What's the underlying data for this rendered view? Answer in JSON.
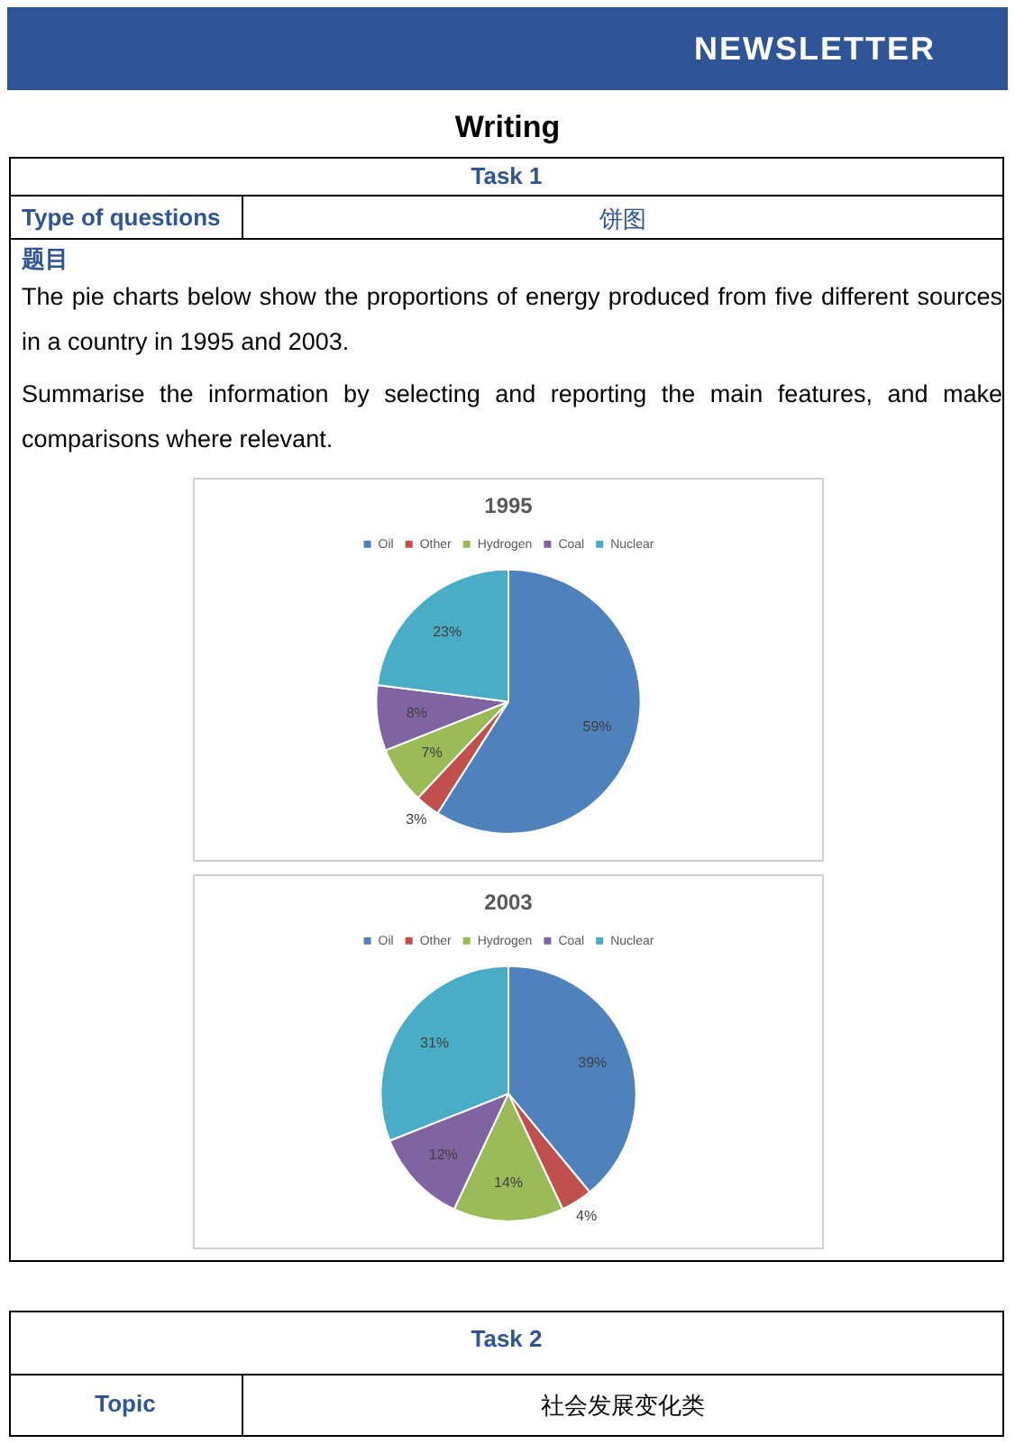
{
  "chart_data": [
    {
      "type": "pie",
      "title": "1995",
      "categories": [
        "Oil",
        "Other",
        "Hydrogen",
        "Coal",
        "Nuclear"
      ],
      "values": [
        59,
        3,
        7,
        8,
        23
      ],
      "value_labels": [
        "59%",
        "3%",
        "7%",
        "8%",
        "23%"
      ],
      "colors": [
        "#4f81bd",
        "#c0504d",
        "#9bbb59",
        "#8064a2",
        "#4bacc6"
      ],
      "legend": "top",
      "annotations": [
        "NEWSLETTER",
        "Writing",
        "Task 1",
        "Type of questions",
        "饼图",
        "题目",
        "The pie charts below show the proportions of energy produced from five different sources in a country in 1995 and 2003.",
        "Summarise the information by selecting and reporting the main features, and make comparisons where relevant."
      ]
    },
    {
      "type": "pie",
      "title": "2003",
      "categories": [
        "Oil",
        "Other",
        "Hydrogen",
        "Coal",
        "Nuclear"
      ],
      "values": [
        39,
        4,
        14,
        12,
        31
      ],
      "value_labels": [
        "39%",
        "4%",
        "14%",
        "12%",
        "31%"
      ],
      "colors": [
        "#4f81bd",
        "#c0504d",
        "#9bbb59",
        "#8064a2",
        "#4bacc6"
      ],
      "legend": "top",
      "annotations": [
        "Task 2",
        "Topic",
        "社会发展变化类"
      ]
    }
  ]
}
